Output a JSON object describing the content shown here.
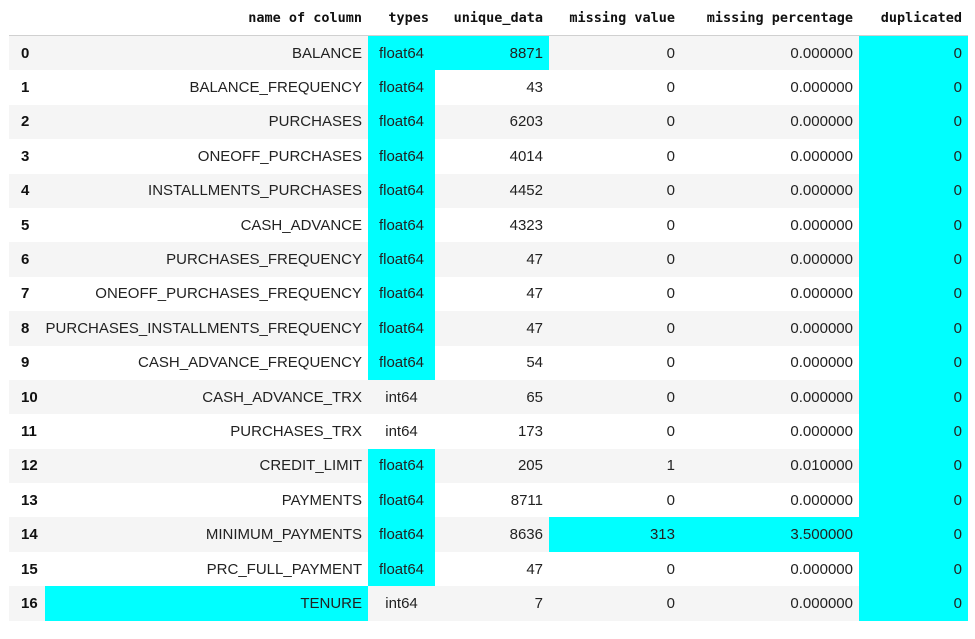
{
  "colors": {
    "highlight": "#00ffff",
    "stripe": "#f5f5f5"
  },
  "headers": {
    "index": "",
    "name": "name of column",
    "types": "types",
    "unique": "unique_data",
    "missing": "missing value",
    "pct": "missing percentage",
    "dup": "duplicated"
  },
  "rows": [
    {
      "idx": "0",
      "name": "BALANCE",
      "types": "float64",
      "unique": "8871",
      "missing": "0",
      "pct": "0.000000",
      "dup": "0",
      "hl": [
        "types",
        "unique",
        "dup"
      ]
    },
    {
      "idx": "1",
      "name": "BALANCE_FREQUENCY",
      "types": "float64",
      "unique": "43",
      "missing": "0",
      "pct": "0.000000",
      "dup": "0",
      "hl": [
        "types",
        "dup"
      ]
    },
    {
      "idx": "2",
      "name": "PURCHASES",
      "types": "float64",
      "unique": "6203",
      "missing": "0",
      "pct": "0.000000",
      "dup": "0",
      "hl": [
        "types",
        "dup"
      ]
    },
    {
      "idx": "3",
      "name": "ONEOFF_PURCHASES",
      "types": "float64",
      "unique": "4014",
      "missing": "0",
      "pct": "0.000000",
      "dup": "0",
      "hl": [
        "types",
        "dup"
      ]
    },
    {
      "idx": "4",
      "name": "INSTALLMENTS_PURCHASES",
      "types": "float64",
      "unique": "4452",
      "missing": "0",
      "pct": "0.000000",
      "dup": "0",
      "hl": [
        "types",
        "dup"
      ]
    },
    {
      "idx": "5",
      "name": "CASH_ADVANCE",
      "types": "float64",
      "unique": "4323",
      "missing": "0",
      "pct": "0.000000",
      "dup": "0",
      "hl": [
        "types",
        "dup"
      ]
    },
    {
      "idx": "6",
      "name": "PURCHASES_FREQUENCY",
      "types": "float64",
      "unique": "47",
      "missing": "0",
      "pct": "0.000000",
      "dup": "0",
      "hl": [
        "types",
        "dup"
      ]
    },
    {
      "idx": "7",
      "name": "ONEOFF_PURCHASES_FREQUENCY",
      "types": "float64",
      "unique": "47",
      "missing": "0",
      "pct": "0.000000",
      "dup": "0",
      "hl": [
        "types",
        "dup"
      ]
    },
    {
      "idx": "8",
      "name": "PURCHASES_INSTALLMENTS_FREQUENCY",
      "types": "float64",
      "unique": "47",
      "missing": "0",
      "pct": "0.000000",
      "dup": "0",
      "hl": [
        "types",
        "dup"
      ]
    },
    {
      "idx": "9",
      "name": "CASH_ADVANCE_FREQUENCY",
      "types": "float64",
      "unique": "54",
      "missing": "0",
      "pct": "0.000000",
      "dup": "0",
      "hl": [
        "types",
        "dup"
      ]
    },
    {
      "idx": "10",
      "name": "CASH_ADVANCE_TRX",
      "types": "int64",
      "unique": "65",
      "missing": "0",
      "pct": "0.000000",
      "dup": "0",
      "hl": [
        "dup"
      ]
    },
    {
      "idx": "11",
      "name": "PURCHASES_TRX",
      "types": "int64",
      "unique": "173",
      "missing": "0",
      "pct": "0.000000",
      "dup": "0",
      "hl": [
        "dup"
      ]
    },
    {
      "idx": "12",
      "name": "CREDIT_LIMIT",
      "types": "float64",
      "unique": "205",
      "missing": "1",
      "pct": "0.010000",
      "dup": "0",
      "hl": [
        "types",
        "dup"
      ]
    },
    {
      "idx": "13",
      "name": "PAYMENTS",
      "types": "float64",
      "unique": "8711",
      "missing": "0",
      "pct": "0.000000",
      "dup": "0",
      "hl": [
        "types",
        "dup"
      ]
    },
    {
      "idx": "14",
      "name": "MINIMUM_PAYMENTS",
      "types": "float64",
      "unique": "8636",
      "missing": "313",
      "pct": "3.500000",
      "dup": "0",
      "hl": [
        "types",
        "missing",
        "pct",
        "dup"
      ]
    },
    {
      "idx": "15",
      "name": "PRC_FULL_PAYMENT",
      "types": "float64",
      "unique": "47",
      "missing": "0",
      "pct": "0.000000",
      "dup": "0",
      "hl": [
        "types",
        "dup"
      ]
    },
    {
      "idx": "16",
      "name": "TENURE",
      "types": "int64",
      "unique": "7",
      "missing": "0",
      "pct": "0.000000",
      "dup": "0",
      "hl": [
        "name",
        "dup"
      ]
    }
  ]
}
